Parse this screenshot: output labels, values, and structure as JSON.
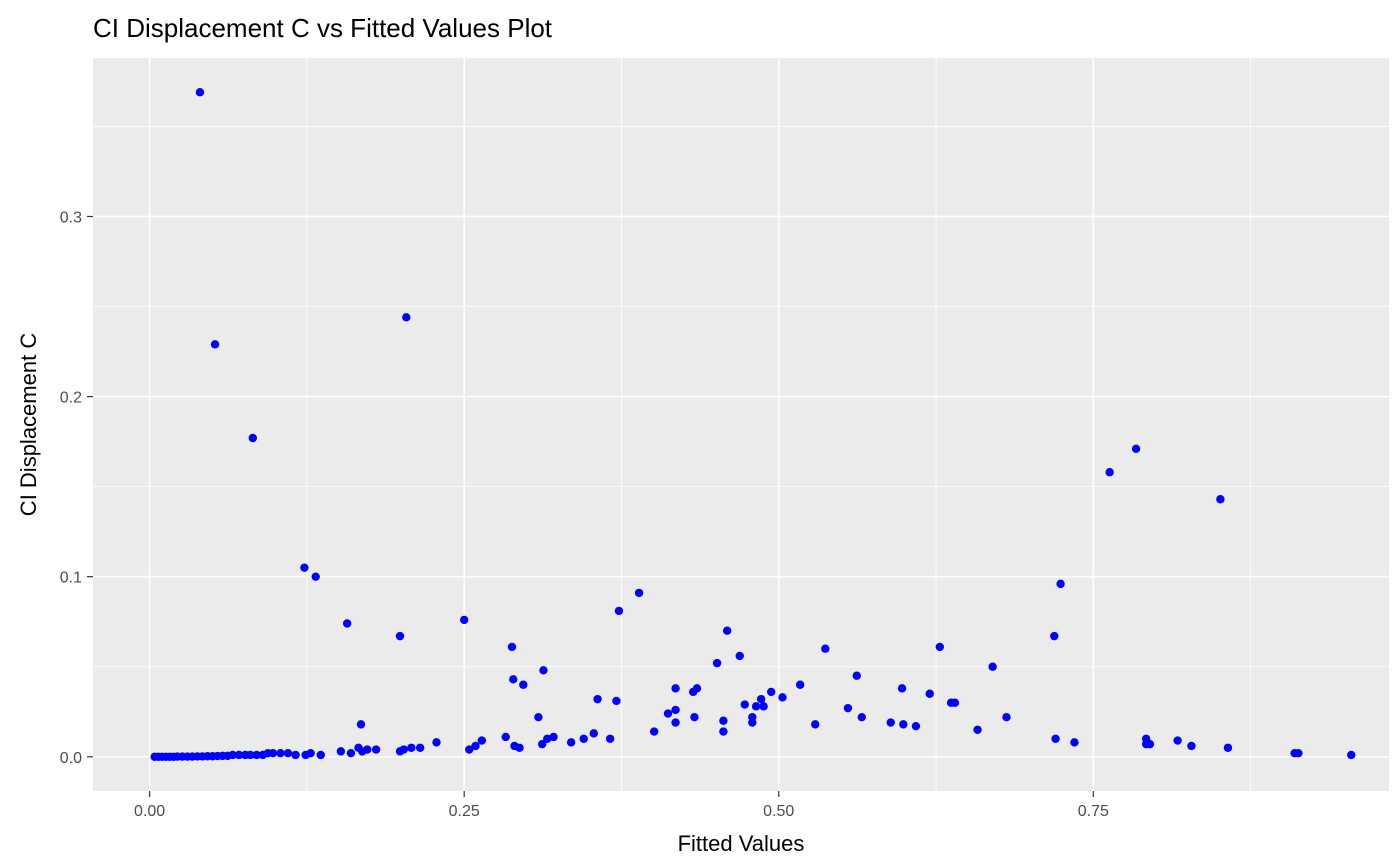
{
  "chart_data": {
    "type": "scatter",
    "title": "CI Displacement C vs Fitted Values Plot",
    "xlabel": "Fitted Values",
    "ylabel": "CI Displacement C",
    "xlim": [
      -0.045,
      0.985
    ],
    "ylim": [
      -0.019,
      0.388
    ],
    "x_ticks": [
      0.0,
      0.25,
      0.5,
      0.75
    ],
    "x_tick_labels": [
      "0.00",
      "0.25",
      "0.50",
      "0.75"
    ],
    "y_ticks": [
      0.0,
      0.1,
      0.2,
      0.3
    ],
    "y_tick_labels": [
      "0.0",
      "0.1",
      "0.2",
      "0.3"
    ],
    "grid": true,
    "point_color": "#0000ff",
    "panel_color": "#ebebeb",
    "grid_color": "#ffffff",
    "points": [
      [
        0.04,
        0.369
      ],
      [
        0.052,
        0.229
      ],
      [
        0.082,
        0.177
      ],
      [
        0.204,
        0.244
      ],
      [
        0.123,
        0.105
      ],
      [
        0.132,
        0.1
      ],
      [
        0.157,
        0.074
      ],
      [
        0.199,
        0.067
      ],
      [
        0.25,
        0.076
      ],
      [
        0.168,
        0.018
      ],
      [
        0.288,
        0.061
      ],
      [
        0.289,
        0.043
      ],
      [
        0.297,
        0.04
      ],
      [
        0.313,
        0.048
      ],
      [
        0.373,
        0.081
      ],
      [
        0.389,
        0.091
      ],
      [
        0.309,
        0.022
      ],
      [
        0.356,
        0.032
      ],
      [
        0.371,
        0.031
      ],
      [
        0.412,
        0.024
      ],
      [
        0.418,
        0.038
      ],
      [
        0.418,
        0.026
      ],
      [
        0.418,
        0.019
      ],
      [
        0.432,
        0.036
      ],
      [
        0.435,
        0.038
      ],
      [
        0.433,
        0.022
      ],
      [
        0.451,
        0.052
      ],
      [
        0.459,
        0.07
      ],
      [
        0.469,
        0.056
      ],
      [
        0.456,
        0.02
      ],
      [
        0.456,
        0.014
      ],
      [
        0.473,
        0.029
      ],
      [
        0.479,
        0.022
      ],
      [
        0.479,
        0.019
      ],
      [
        0.482,
        0.028
      ],
      [
        0.486,
        0.032
      ],
      [
        0.488,
        0.028
      ],
      [
        0.494,
        0.036
      ],
      [
        0.503,
        0.033
      ],
      [
        0.517,
        0.04
      ],
      [
        0.529,
        0.018
      ],
      [
        0.537,
        0.06
      ],
      [
        0.555,
        0.027
      ],
      [
        0.562,
        0.045
      ],
      [
        0.566,
        0.022
      ],
      [
        0.589,
        0.019
      ],
      [
        0.598,
        0.038
      ],
      [
        0.599,
        0.018
      ],
      [
        0.609,
        0.017
      ],
      [
        0.62,
        0.035
      ],
      [
        0.628,
        0.061
      ],
      [
        0.637,
        0.03
      ],
      [
        0.64,
        0.03
      ],
      [
        0.658,
        0.015
      ],
      [
        0.67,
        0.05
      ],
      [
        0.681,
        0.022
      ],
      [
        0.719,
        0.067
      ],
      [
        0.724,
        0.096
      ],
      [
        0.72,
        0.01
      ],
      [
        0.735,
        0.008
      ],
      [
        0.763,
        0.158
      ],
      [
        0.784,
        0.171
      ],
      [
        0.851,
        0.143
      ],
      [
        0.792,
        0.01
      ],
      [
        0.792,
        0.007
      ],
      [
        0.795,
        0.007
      ],
      [
        0.817,
        0.009
      ],
      [
        0.828,
        0.006
      ],
      [
        0.857,
        0.005
      ],
      [
        0.91,
        0.002
      ],
      [
        0.913,
        0.002
      ],
      [
        0.955,
        0.001
      ],
      [
        0.283,
        0.011
      ],
      [
        0.29,
        0.006
      ],
      [
        0.294,
        0.005
      ],
      [
        0.312,
        0.007
      ],
      [
        0.316,
        0.01
      ],
      [
        0.321,
        0.011
      ],
      [
        0.335,
        0.008
      ],
      [
        0.345,
        0.01
      ],
      [
        0.353,
        0.013
      ],
      [
        0.366,
        0.01
      ],
      [
        0.401,
        0.014
      ],
      [
        0.254,
        0.004
      ],
      [
        0.259,
        0.006
      ],
      [
        0.264,
        0.009
      ],
      [
        0.228,
        0.008
      ],
      [
        0.215,
        0.005
      ],
      [
        0.208,
        0.005
      ],
      [
        0.202,
        0.004
      ],
      [
        0.199,
        0.003
      ],
      [
        0.18,
        0.004
      ],
      [
        0.173,
        0.004
      ],
      [
        0.169,
        0.003
      ],
      [
        0.166,
        0.005
      ],
      [
        0.16,
        0.002
      ],
      [
        0.152,
        0.003
      ],
      [
        0.136,
        0.001
      ],
      [
        0.128,
        0.002
      ],
      [
        0.124,
        0.001
      ],
      [
        0.116,
        0.001
      ],
      [
        0.11,
        0.002
      ],
      [
        0.104,
        0.002
      ],
      [
        0.098,
        0.002
      ],
      [
        0.094,
        0.002
      ],
      [
        0.09,
        0.001
      ],
      [
        0.085,
        0.001
      ],
      [
        0.08,
        0.001
      ],
      [
        0.076,
        0.001
      ],
      [
        0.071,
        0.001
      ],
      [
        0.066,
        0.001
      ],
      [
        0.062,
        0.0005
      ],
      [
        0.058,
        0.0005
      ],
      [
        0.054,
        0.0004
      ],
      [
        0.05,
        0.0003
      ],
      [
        0.046,
        0.0003
      ],
      [
        0.042,
        0.0002
      ],
      [
        0.038,
        0.0002
      ],
      [
        0.034,
        0.0001
      ],
      [
        0.03,
        0.0001
      ],
      [
        0.026,
        0.0001
      ],
      [
        0.022,
        0.0001
      ],
      [
        0.019,
        0.0
      ],
      [
        0.016,
        0.0
      ],
      [
        0.013,
        0.0
      ],
      [
        0.01,
        0.0
      ],
      [
        0.007,
        0.0
      ],
      [
        0.004,
        0.0
      ]
    ]
  }
}
